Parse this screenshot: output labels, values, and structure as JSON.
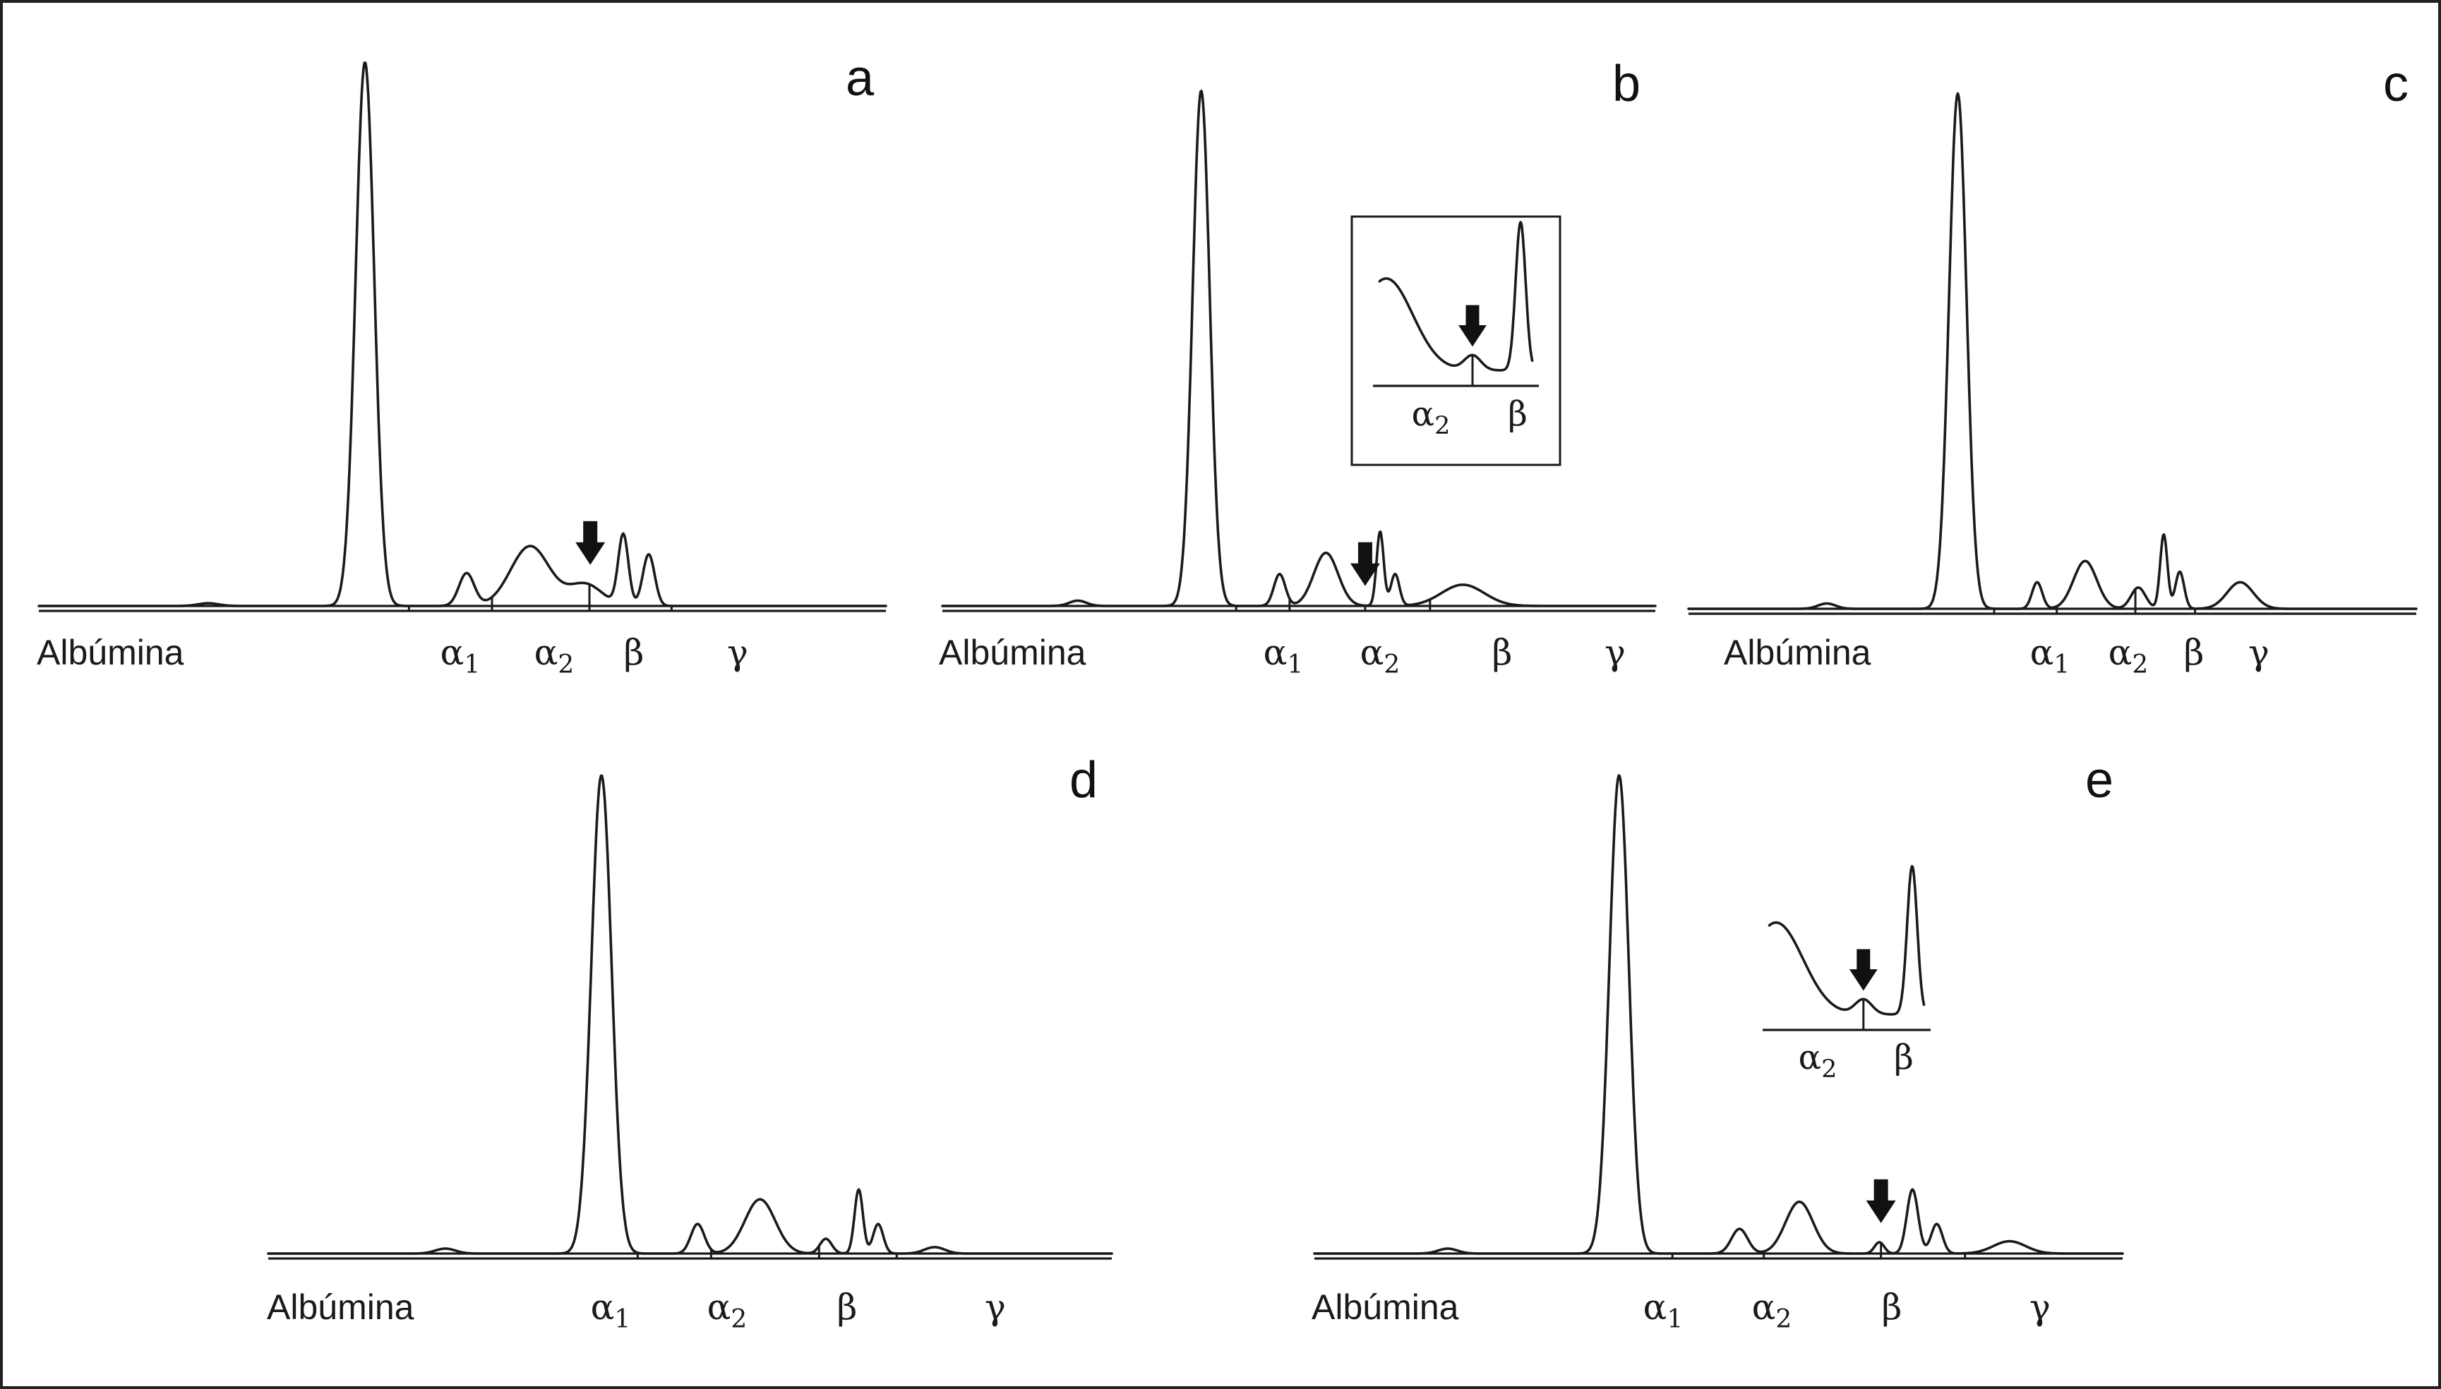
{
  "chart_data": [
    {
      "panel": "a",
      "type": "line",
      "baseline_label": "Albúmina",
      "fractions": [
        {
          "label": "α",
          "sub": "1"
        },
        {
          "label": "α",
          "sub": "2"
        },
        {
          "label": "β",
          "sub": ""
        },
        {
          "label": "γ",
          "sub": ""
        }
      ],
      "peaks": [
        {
          "x": 0.2,
          "h": 0.005,
          "w": 0.012
        },
        {
          "x": 0.385,
          "h": 1.0,
          "w": 0.011
        },
        {
          "x": 0.505,
          "h": 0.06,
          "w": 0.009
        },
        {
          "x": 0.58,
          "h": 0.11,
          "w": 0.023
        },
        {
          "x": 0.645,
          "h": 0.04,
          "w": 0.02
        },
        {
          "x": 0.69,
          "h": 0.13,
          "w": 0.006
        },
        {
          "x": 0.72,
          "h": 0.095,
          "w": 0.007
        }
      ],
      "ticks": [
        0.437,
        0.535,
        0.65,
        0.747
      ],
      "arrow_x": 0.651,
      "inset": null
    },
    {
      "panel": "b",
      "type": "line",
      "baseline_label": "Albúmina",
      "fractions": [
        {
          "label": "α",
          "sub": "1"
        },
        {
          "label": "α",
          "sub": "2"
        },
        {
          "label": "β",
          "sub": ""
        },
        {
          "label": "γ",
          "sub": ""
        }
      ],
      "peaks": [
        {
          "x": 0.19,
          "h": 0.01,
          "w": 0.012
        },
        {
          "x": 0.363,
          "h": 0.97,
          "w": 0.012
        },
        {
          "x": 0.473,
          "h": 0.06,
          "w": 0.008
        },
        {
          "x": 0.538,
          "h": 0.1,
          "w": 0.017
        },
        {
          "x": 0.614,
          "h": 0.14,
          "w": 0.005
        },
        {
          "x": 0.635,
          "h": 0.06,
          "w": 0.006
        },
        {
          "x": 0.73,
          "h": 0.04,
          "w": 0.03
        }
      ],
      "ticks": [
        0.412,
        0.487,
        0.593,
        0.684
      ],
      "arrow_x": 0.593,
      "inset": {
        "fractions": [
          {
            "label": "α",
            "sub": "2"
          },
          {
            "label": "β",
            "sub": ""
          }
        ]
      }
    },
    {
      "panel": "c",
      "type": "line",
      "baseline_label": "Albúmina",
      "fractions": [
        {
          "label": "α",
          "sub": "1"
        },
        {
          "label": "α",
          "sub": "2"
        },
        {
          "label": "β",
          "sub": ""
        },
        {
          "label": "γ",
          "sub": ""
        }
      ],
      "peaks": [
        {
          "x": 0.19,
          "h": 0.01,
          "w": 0.012
        },
        {
          "x": 0.37,
          "h": 0.97,
          "w": 0.012
        },
        {
          "x": 0.479,
          "h": 0.05,
          "w": 0.007
        },
        {
          "x": 0.545,
          "h": 0.09,
          "w": 0.016
        },
        {
          "x": 0.618,
          "h": 0.04,
          "w": 0.01
        },
        {
          "x": 0.653,
          "h": 0.14,
          "w": 0.005
        },
        {
          "x": 0.675,
          "h": 0.07,
          "w": 0.006
        },
        {
          "x": 0.758,
          "h": 0.05,
          "w": 0.018
        }
      ],
      "ticks": [
        0.42,
        0.506,
        0.614,
        0.696
      ],
      "arrow_x": null,
      "inset": null
    },
    {
      "panel": "d",
      "type": "line",
      "baseline_label": "Albúmina",
      "fractions": [
        {
          "label": "α",
          "sub": "1"
        },
        {
          "label": "α",
          "sub": "2"
        },
        {
          "label": "β",
          "sub": ""
        },
        {
          "label": "γ",
          "sub": ""
        }
      ],
      "peaks": [
        {
          "x": 0.21,
          "h": 0.01,
          "w": 0.012
        },
        {
          "x": 0.395,
          "h": 0.97,
          "w": 0.012
        },
        {
          "x": 0.509,
          "h": 0.06,
          "w": 0.008
        },
        {
          "x": 0.583,
          "h": 0.11,
          "w": 0.018
        },
        {
          "x": 0.661,
          "h": 0.03,
          "w": 0.007
        },
        {
          "x": 0.7,
          "h": 0.13,
          "w": 0.005
        },
        {
          "x": 0.723,
          "h": 0.06,
          "w": 0.006
        },
        {
          "x": 0.79,
          "h": 0.013,
          "w": 0.012
        }
      ],
      "ticks": [
        0.438,
        0.525,
        0.653,
        0.745
      ],
      "arrow_x": null,
      "inset": null
    },
    {
      "panel": "e",
      "type": "line",
      "baseline_label": "Albúmina",
      "fractions": [
        {
          "label": "α",
          "sub": "1"
        },
        {
          "label": "α",
          "sub": "2"
        },
        {
          "label": "β",
          "sub": ""
        },
        {
          "label": "γ",
          "sub": ""
        }
      ],
      "peaks": [
        {
          "x": 0.165,
          "h": 0.01,
          "w": 0.012
        },
        {
          "x": 0.377,
          "h": 0.97,
          "w": 0.012
        },
        {
          "x": 0.526,
          "h": 0.05,
          "w": 0.01
        },
        {
          "x": 0.6,
          "h": 0.105,
          "w": 0.017
        },
        {
          "x": 0.699,
          "h": 0.023,
          "w": 0.006
        },
        {
          "x": 0.74,
          "h": 0.13,
          "w": 0.007
        },
        {
          "x": 0.77,
          "h": 0.06,
          "w": 0.007
        },
        {
          "x": 0.86,
          "h": 0.025,
          "w": 0.02
        }
      ],
      "ticks": [
        0.443,
        0.556,
        0.701,
        0.805
      ],
      "arrow_x": 0.701,
      "inset": {
        "fractions": [
          {
            "label": "α",
            "sub": "2"
          },
          {
            "label": "β",
            "sub": ""
          }
        ]
      }
    }
  ]
}
